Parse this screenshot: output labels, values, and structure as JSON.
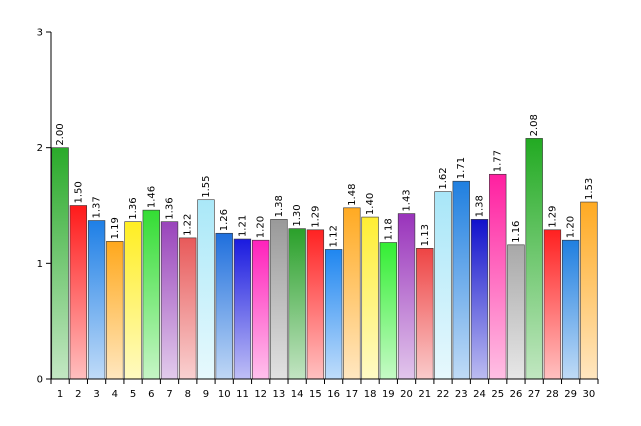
{
  "chart_data": {
    "type": "bar",
    "categories": [
      "1",
      "2",
      "3",
      "4",
      "5",
      "6",
      "7",
      "8",
      "9",
      "10",
      "11",
      "12",
      "13",
      "14",
      "15",
      "16",
      "17",
      "18",
      "19",
      "20",
      "21",
      "22",
      "23",
      "24",
      "25",
      "26",
      "27",
      "28",
      "29",
      "30"
    ],
    "values": [
      2.0,
      1.5,
      1.37,
      1.19,
      1.36,
      1.46,
      1.36,
      1.22,
      1.55,
      1.26,
      1.21,
      1.2,
      1.38,
      1.3,
      1.29,
      1.12,
      1.48,
      1.4,
      1.18,
      1.43,
      1.13,
      1.62,
      1.71,
      1.38,
      1.77,
      1.16,
      2.08,
      1.29,
      1.2,
      1.53
    ],
    "value_labels": [
      "2.00",
      "1.50",
      "1.37",
      "1.19",
      "1.36",
      "1.46",
      "1.36",
      "1.22",
      "1.55",
      "1.26",
      "1.21",
      "1.20",
      "1.38",
      "1.30",
      "1.29",
      "1.12",
      "1.48",
      "1.40",
      "1.18",
      "1.43",
      "1.13",
      "1.62",
      "1.71",
      "1.38",
      "1.77",
      "1.16",
      "2.08",
      "1.29",
      "1.20",
      "1.53"
    ],
    "colors": [
      "#2aaa2a",
      "#ff1a1a",
      "#1e7fe6",
      "#ffa81c",
      "#ffee22",
      "#33dd33",
      "#9944bb",
      "#e85a5a",
      "#aae8f8",
      "#1f6fdd",
      "#1a1adf",
      "#ff22bb",
      "#999999",
      "#2aa02a",
      "#ff2222",
      "#1f86f0",
      "#ffaa22",
      "#ffee33",
      "#33ee33",
      "#9933bb",
      "#ee4444",
      "#a8e6f8",
      "#1f7fe0",
      "#1111cc",
      "#ff1fa0",
      "#a8a8a8",
      "#22aa22",
      "#ff2020",
      "#1f7fe0",
      "#ffaa22"
    ],
    "y_ticks": [
      "0",
      "1",
      "2",
      "3"
    ],
    "ylim": [
      0,
      3
    ],
    "title": "",
    "xlabel": "",
    "ylabel": "",
    "grid": false,
    "legend": "none"
  }
}
